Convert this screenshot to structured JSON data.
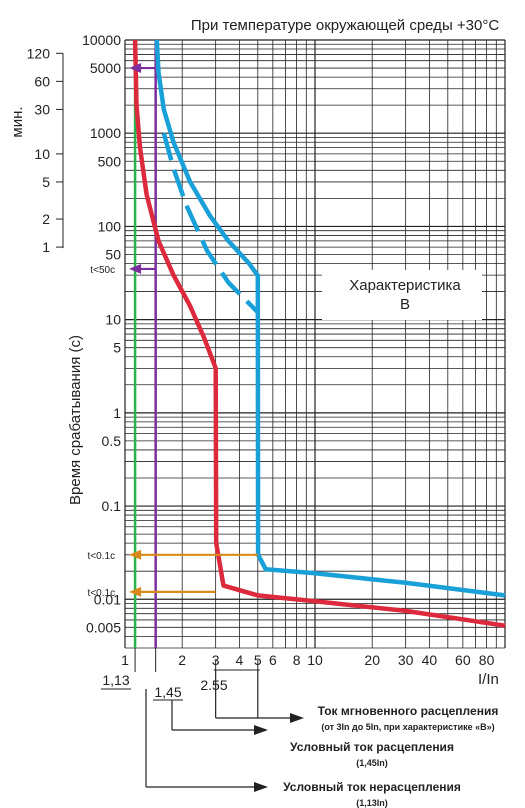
{
  "chart_data": {
    "type": "line",
    "title": "При температуре окружающей среды +30°C",
    "ylabel": "Время срабатывания (с)",
    "xlabel": "I/In",
    "xscale": "log",
    "yscale": "log",
    "xlim": [
      1,
      100
    ],
    "ylim": [
      0.003,
      10000
    ],
    "grid": true,
    "x_ticks": [
      "1",
      "2",
      "3",
      "4",
      "5",
      "6",
      "8",
      "10",
      "20",
      "30",
      "40",
      "60",
      "80"
    ],
    "y_ticks": [
      "10000",
      "5000",
      "1000",
      "500",
      "100",
      "50",
      "10",
      "5",
      "1",
      "0.5",
      "0.1",
      "0.01",
      "0.005"
    ],
    "minutes_axis": {
      "label": "мин.",
      "ticks": [
        "120",
        "60",
        "30",
        "10",
        "5",
        "2",
        "1"
      ]
    },
    "characteristic_box": [
      "Характеристика",
      "B"
    ],
    "series": [
      {
        "name": "",
        "color": "#dc2a3c",
        "points": [
          [
            1.13,
            10000
          ],
          [
            1.15,
            2000
          ],
          [
            1.2,
            700
          ],
          [
            1.3,
            220
          ],
          [
            1.5,
            70
          ],
          [
            1.8,
            30
          ],
          [
            2.2,
            14
          ],
          [
            2.6,
            6.5
          ],
          [
            2.95,
            3.3
          ],
          [
            3.0,
            3.0
          ],
          [
            3.02,
            0.04
          ],
          [
            3.3,
            0.014
          ],
          [
            5,
            0.011
          ],
          [
            10,
            0.0095
          ],
          [
            30,
            0.0075
          ],
          [
            100,
            0.0052
          ]
        ]
      },
      {
        "name": "",
        "color": "#1aa0d8",
        "points": [
          [
            1.47,
            10000
          ],
          [
            1.5,
            4500
          ],
          [
            1.6,
            1800
          ],
          [
            1.8,
            800
          ],
          [
            2.2,
            300
          ],
          [
            2.8,
            130
          ],
          [
            3.5,
            70
          ],
          [
            4.5,
            40
          ],
          [
            4.98,
            30
          ],
          [
            5.0,
            30
          ],
          [
            5.02,
            0.03
          ],
          [
            5.5,
            0.021
          ],
          [
            10,
            0.019
          ],
          [
            30,
            0.015
          ],
          [
            100,
            0.011
          ]
        ]
      },
      {
        "name": "",
        "color": "#1aa0d8",
        "dashed": true,
        "points": [
          [
            1.6,
            1000
          ],
          [
            1.8,
            420
          ],
          [
            2.1,
            170
          ],
          [
            2.7,
            55
          ],
          [
            3.5,
            25
          ],
          [
            5.0,
            12
          ]
        ]
      }
    ],
    "vertical_markers": [
      {
        "x": 1.13,
        "color": "#2cb24a",
        "label": "1,13"
      },
      {
        "x": 1.45,
        "color": "#7a2f9c",
        "label": "1,45"
      },
      {
        "x": 2.55,
        "color": "#555555",
        "label": "2.55"
      }
    ],
    "time_arrows": [
      {
        "y": 5000,
        "color": "#7a2f9c",
        "label": ""
      },
      {
        "y": 35,
        "color": "#7a2f9c",
        "label": "t<50с"
      },
      {
        "y": 0.03,
        "x_from": 5,
        "color": "#d98a1a",
        "label": "t<0.1с"
      },
      {
        "y": 0.012,
        "x_from": 3,
        "color": "#d98a1a",
        "label": "t<0.1с"
      }
    ],
    "callouts": [
      {
        "x": 4,
        "title": "Ток мгновенного расцепления",
        "sub": "(от 3In до 5In, при характеристике «B»)"
      },
      {
        "x": 1.45,
        "title": "Условный ток расцепления",
        "sub": "(1,45In)"
      },
      {
        "x": 1.13,
        "title": "Условный ток нерасцепления",
        "sub": "(1,13In)"
      }
    ]
  }
}
